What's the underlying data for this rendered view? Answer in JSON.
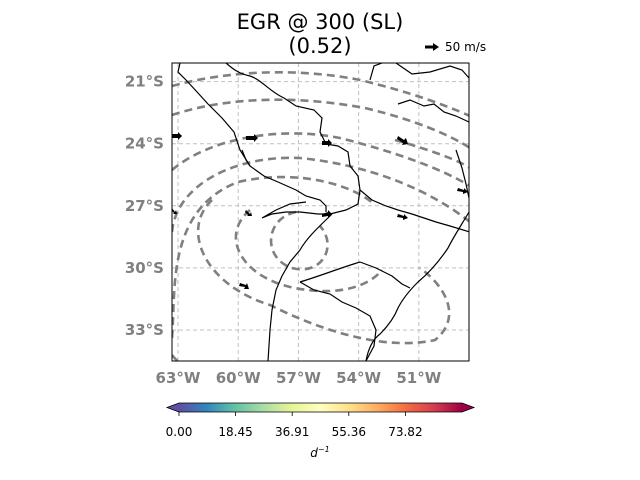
{
  "title": {
    "line1": "EGR @ 300 (SL)",
    "line2": "(0.52)"
  },
  "reference_vector": {
    "label": "50 m/s"
  },
  "map": {
    "lon_range": [
      -63.3,
      -48.5
    ],
    "lat_range": [
      -34.5,
      -20.1
    ],
    "lat_ticks": [
      {
        "value": -21,
        "label": "21°S"
      },
      {
        "value": -24,
        "label": "24°S"
      },
      {
        "value": -27,
        "label": "27°S"
      },
      {
        "value": -30,
        "label": "30°S"
      },
      {
        "value": -33,
        "label": "33°S"
      }
    ],
    "lon_ticks": [
      {
        "value": -63,
        "label": "63°W"
      },
      {
        "value": -60,
        "label": "60°W"
      },
      {
        "value": -57,
        "label": "57°W"
      },
      {
        "value": -54,
        "label": "54°W"
      },
      {
        "value": -51,
        "label": "51°W"
      }
    ],
    "contour_style": "dashed grey",
    "gridlines": "dashed light grey"
  },
  "colorbar": {
    "colormap": "Spectral_r",
    "colors": [
      "#5e4fa2",
      "#3288bd",
      "#66c2a5",
      "#abdda4",
      "#e6f598",
      "#ffffbf",
      "#fee08b",
      "#fdae61",
      "#f46d43",
      "#d53e4f",
      "#9e0142"
    ],
    "ticks": [
      "0.00",
      "18.45",
      "36.91",
      "55.36",
      "73.82"
    ],
    "tick_values": [
      0.0,
      18.45,
      36.91,
      55.36,
      73.82
    ],
    "range": [
      0,
      92.27
    ],
    "unit_base": "d",
    "unit_exp": "−1",
    "extend": "both"
  }
}
